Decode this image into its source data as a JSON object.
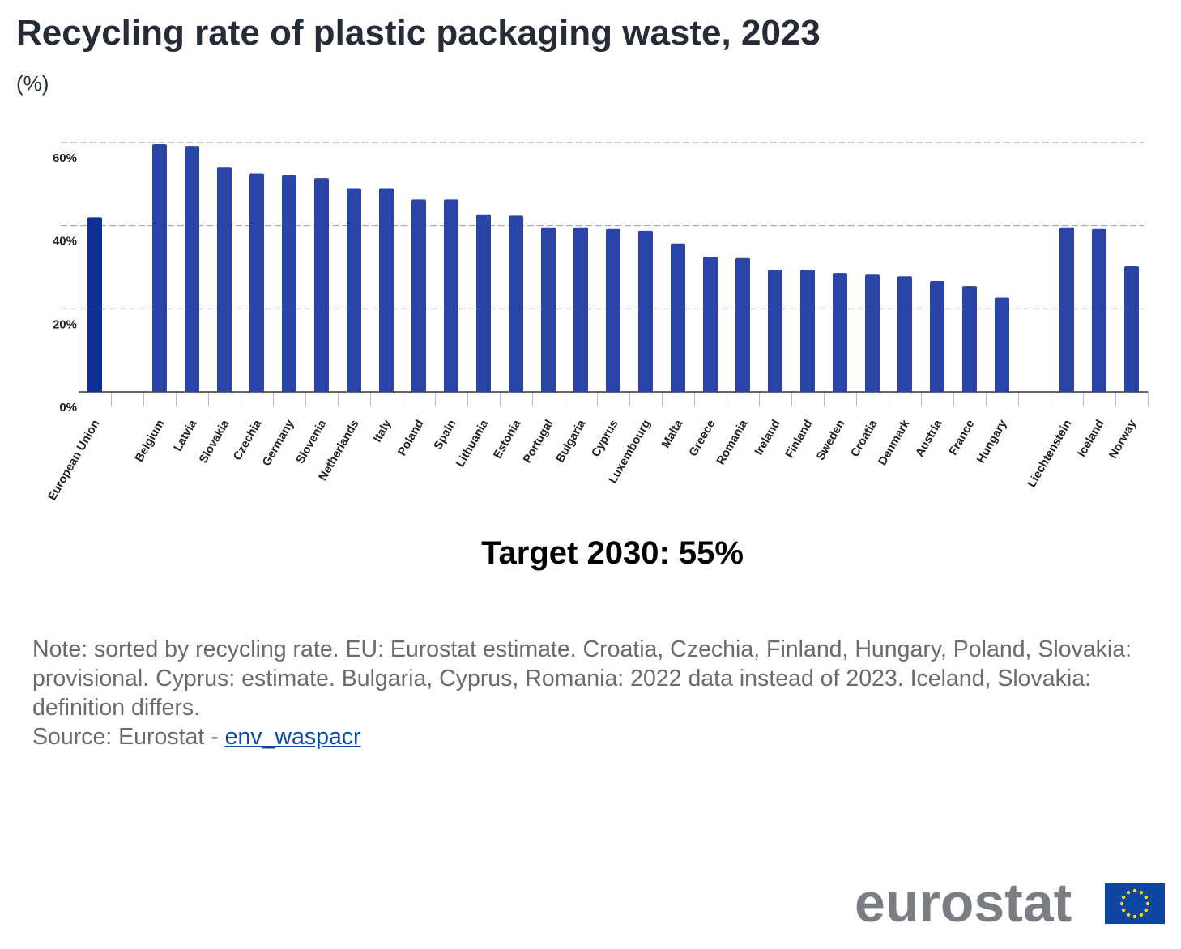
{
  "chart_data": {
    "type": "bar",
    "title": "Recycling rate of plastic packaging waste, 2023",
    "subtitle": "(%)",
    "categories": [
      "European Union",
      null,
      "Belgium",
      "Latvia",
      "Slovakia",
      "Czechia",
      "Germany",
      "Slovenia",
      "Netherlands",
      "Italy",
      "Poland",
      "Spain",
      "Lithuania",
      "Estonia",
      "Portugal",
      "Bulgaria",
      "Cyprus",
      "Luxembourg",
      "Malta",
      "Greece",
      "Romania",
      "Ireland",
      "Finland",
      "Sweden",
      "Croatia",
      "Denmark",
      "Austria",
      "France",
      "Hungary",
      null,
      "Liechtenstein",
      "Iceland",
      "Norway"
    ],
    "values": [
      42.0,
      null,
      59.6,
      59.2,
      54.1,
      52.5,
      52.2,
      51.4,
      49.0,
      49.0,
      46.3,
      46.3,
      42.7,
      42.4,
      39.6,
      39.6,
      39.2,
      38.8,
      35.7,
      32.5,
      32.2,
      29.4,
      29.4,
      28.6,
      28.2,
      27.8,
      26.7,
      25.5,
      22.7,
      null,
      39.6,
      39.2,
      30.2
    ],
    "color": "#2a44a8",
    "highlight_color": "#0e2f98",
    "highlight_categories": [
      "European Union"
    ],
    "ylim": [
      0,
      60
    ],
    "yticks": [
      {
        "value": 0,
        "label": "0%"
      },
      {
        "value": 20,
        "label": "20%"
      },
      {
        "value": 40,
        "label": "40%"
      },
      {
        "value": 60,
        "label": "60%"
      }
    ],
    "grid": true,
    "annotation": "Target 2030: 55%"
  },
  "note": "Note: sorted by recycling rate. EU: Eurostat estimate. Croatia, Czechia, Finland, Hungary, Poland, Slovakia: provisional. Cyprus: estimate. Bulgaria, Cyprus, Romania: 2022 data instead of 2023. Iceland, Slovakia: definition differs.",
  "source": {
    "prefix": "Source: Eurostat - ",
    "link": "env_waspacr"
  },
  "logo": "eurostat"
}
